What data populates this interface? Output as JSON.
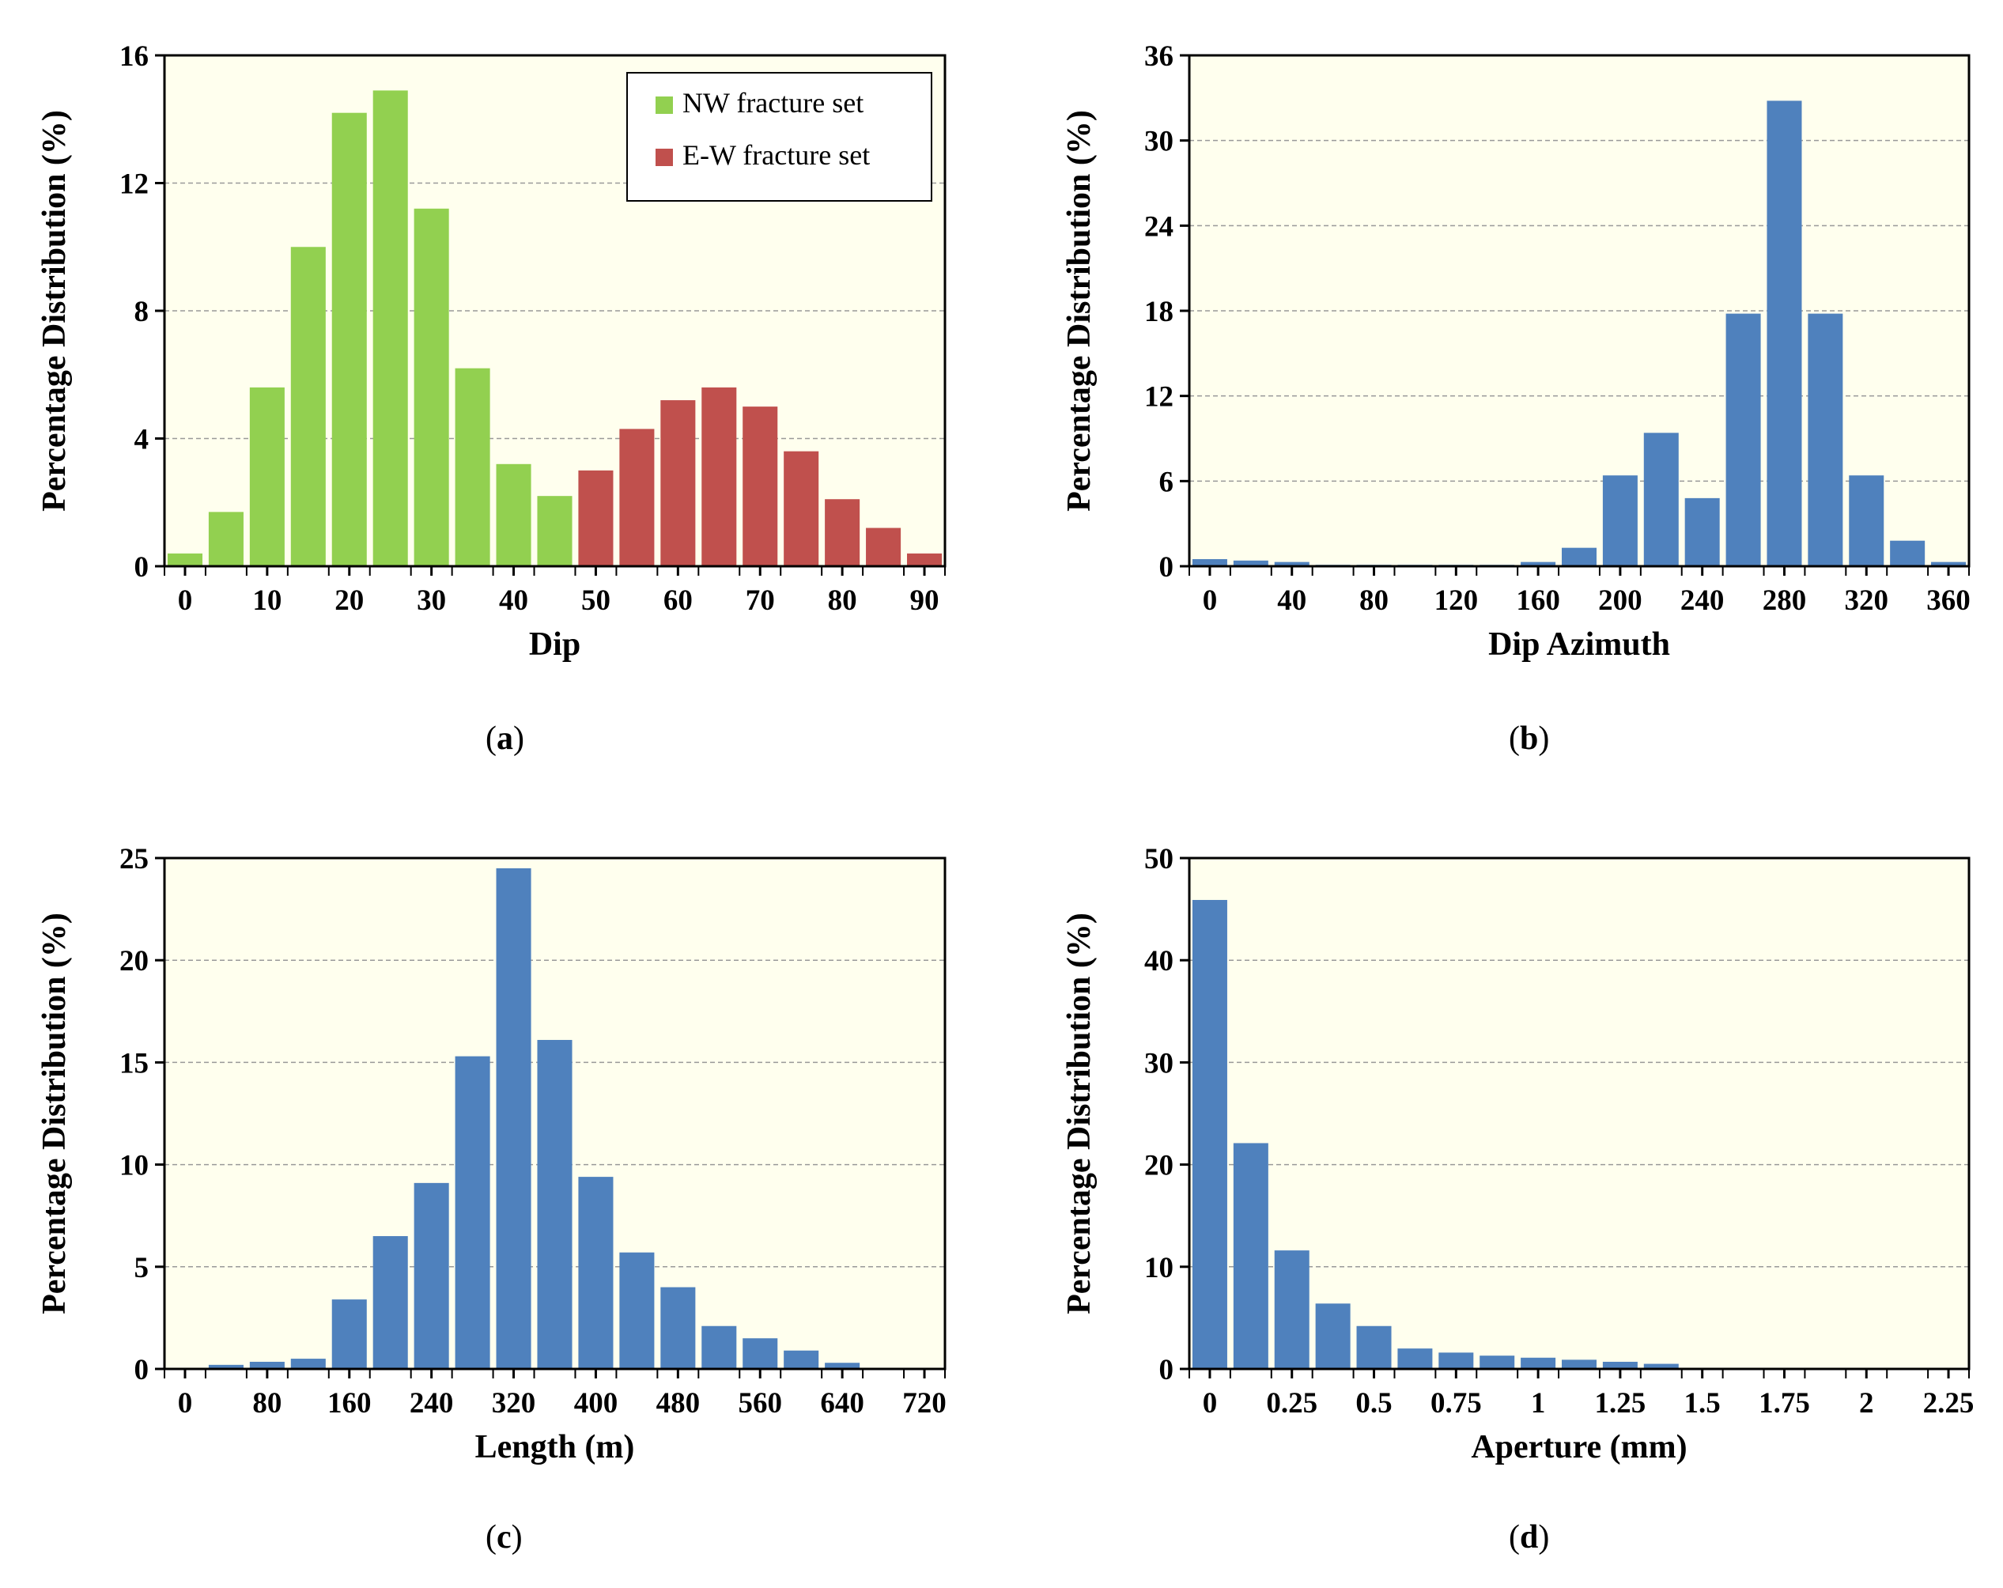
{
  "panel_labels": [
    "a",
    "b",
    "c",
    "d"
  ],
  "colors": {
    "background": "#ffffee",
    "green": "#92d050",
    "red": "#c0504d",
    "blue": "#4f81bd",
    "grid": "#999999"
  },
  "chart_data": [
    {
      "type": "bar",
      "title": "",
      "xlabel": "Dip",
      "ylabel": "Percentage Distribution (%)",
      "xlim": [
        -2.5,
        92.5
      ],
      "ylim": [
        0,
        16
      ],
      "yticks": [
        0,
        4,
        8,
        12,
        16
      ],
      "xticks": [
        0,
        10,
        20,
        30,
        40,
        50,
        60,
        70,
        80,
        90
      ],
      "bin_width": 5,
      "grid": true,
      "legend": "top-right",
      "series": [
        {
          "name": "NW fracture set",
          "color": "#92d050",
          "x": [
            0,
            5,
            10,
            15,
            20,
            25,
            30,
            35,
            40,
            45
          ],
          "values": [
            0.4,
            1.7,
            5.6,
            10.0,
            14.2,
            14.9,
            11.2,
            6.2,
            3.2,
            2.2
          ]
        },
        {
          "name": "E-W fracture set",
          "color": "#c0504d",
          "x": [
            50,
            55,
            60,
            65,
            70,
            75,
            80,
            85,
            90
          ],
          "values": [
            3.0,
            4.3,
            5.2,
            5.6,
            5.0,
            3.6,
            2.1,
            1.2,
            0.4
          ]
        }
      ]
    },
    {
      "type": "bar",
      "title": "",
      "xlabel": "Dip Azimuth",
      "ylabel": "Percentage Distribution (%)",
      "xlim": [
        -10,
        370
      ],
      "ylim": [
        0,
        36
      ],
      "yticks": [
        0,
        6,
        12,
        18,
        24,
        30,
        36
      ],
      "xticks": [
        0,
        40,
        80,
        120,
        160,
        200,
        240,
        280,
        320,
        360
      ],
      "bin_width": 20,
      "grid": true,
      "series": [
        {
          "color": "#4f81bd",
          "x": [
            0,
            20,
            40,
            60,
            80,
            100,
            120,
            140,
            160,
            180,
            200,
            220,
            240,
            260,
            280,
            300,
            320,
            340,
            360
          ],
          "values": [
            0.5,
            0.4,
            0.3,
            0.1,
            0.1,
            0.1,
            0.1,
            0.1,
            0.3,
            1.3,
            6.4,
            9.4,
            4.8,
            17.8,
            32.8,
            17.8,
            6.4,
            1.8,
            0.3
          ]
        }
      ]
    },
    {
      "type": "bar",
      "title": "",
      "xlabel": "Length (m)",
      "ylabel": "Percentage Distribution (%)",
      "xlim": [
        -20,
        740
      ],
      "ylim": [
        0,
        25
      ],
      "yticks": [
        0,
        5,
        10,
        15,
        20,
        25
      ],
      "xticks": [
        0,
        80,
        160,
        240,
        320,
        400,
        480,
        560,
        640,
        720
      ],
      "bin_width": 40,
      "grid": true,
      "series": [
        {
          "color": "#4f81bd",
          "x": [
            0,
            40,
            80,
            120,
            160,
            200,
            240,
            280,
            320,
            360,
            400,
            440,
            480,
            520,
            560,
            600,
            640,
            680,
            720
          ],
          "values": [
            0.05,
            0.2,
            0.35,
            0.5,
            3.4,
            6.5,
            9.1,
            15.3,
            24.5,
            16.1,
            9.4,
            5.7,
            4.0,
            2.1,
            1.5,
            0.9,
            0.3,
            0.0,
            0.0
          ]
        }
      ]
    },
    {
      "type": "bar",
      "title": "",
      "xlabel": "Aperture (mm)",
      "ylabel": "Percentage Distribution (%)",
      "xlim": [
        -0.0625,
        2.3125
      ],
      "ylim": [
        0,
        50
      ],
      "yticks": [
        0,
        10,
        20,
        30,
        40,
        50
      ],
      "xticks": [
        "0",
        "0.25",
        "0.5",
        "0.75",
        "1",
        "1.25",
        "1.5",
        "1.75",
        "2",
        "2.25"
      ],
      "xtick_values": [
        0,
        0.25,
        0.5,
        0.75,
        1,
        1.25,
        1.5,
        1.75,
        2,
        2.25
      ],
      "bin_width": 0.125,
      "grid": true,
      "series": [
        {
          "color": "#4f81bd",
          "x": [
            0,
            0.125,
            0.25,
            0.375,
            0.5,
            0.625,
            0.75,
            0.875,
            1,
            1.125,
            1.25,
            1.375,
            1.5,
            1.625,
            1.75,
            1.875,
            2,
            2.125,
            2.25
          ],
          "values": [
            45.9,
            22.1,
            11.6,
            6.4,
            4.2,
            2.0,
            1.6,
            1.3,
            1.1,
            0.9,
            0.7,
            0.5,
            0.1,
            0.1,
            0.1,
            0.1,
            0.1,
            0.1,
            0.1
          ]
        }
      ]
    }
  ]
}
